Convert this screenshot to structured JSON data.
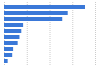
{
  "chart_data": {
    "type": "bar",
    "orientation": "horizontal",
    "categories": [
      null,
      null,
      null,
      null,
      null,
      null,
      null,
      null,
      null,
      null
    ],
    "values": [
      89,
      70,
      64,
      21,
      19,
      17,
      15,
      10,
      9,
      4
    ],
    "color": "#3a78d8",
    "xlim": [
      0,
      100
    ],
    "xticks": [
      0,
      25,
      50,
      75,
      100
    ],
    "grid": true,
    "tick_labels": false
  }
}
